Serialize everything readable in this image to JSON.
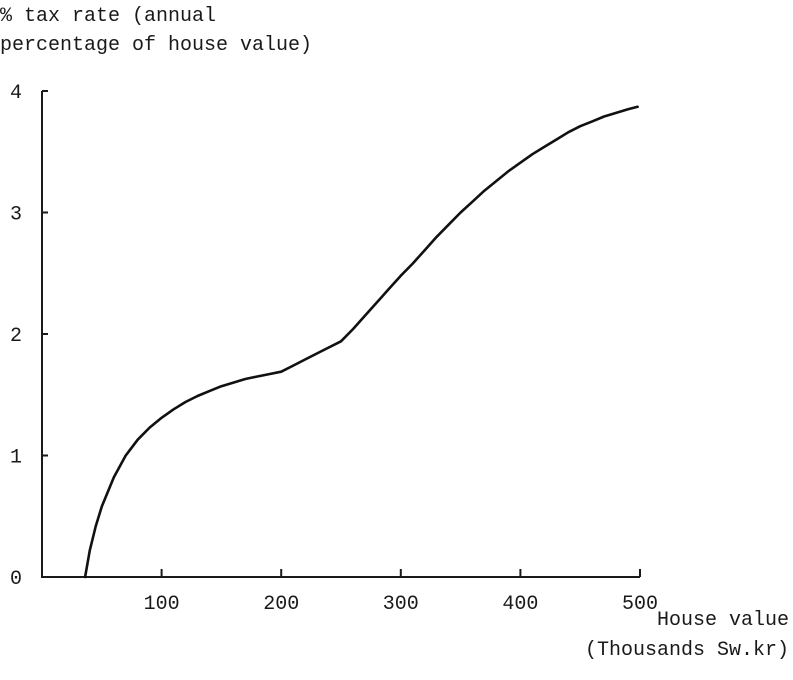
{
  "chart_data": {
    "type": "line",
    "ylabel_lines": [
      "% tax rate (annual",
      "percentage of house value)"
    ],
    "xlabel_lines": [
      "House value",
      "(Thousands Sw.kr)"
    ],
    "xlim": [
      0,
      500
    ],
    "ylim": [
      0,
      4
    ],
    "x_ticks": [
      100,
      200,
      300,
      400,
      500
    ],
    "y_ticks": [
      0,
      1,
      2,
      3,
      4
    ],
    "grid": false,
    "series": [
      {
        "x": [
          36,
          40,
          45,
          50,
          60,
          70,
          80,
          90,
          100,
          110,
          120,
          130,
          140,
          150,
          160,
          170,
          180,
          190,
          200,
          210,
          220,
          230,
          240,
          250,
          260,
          270,
          280,
          290,
          300,
          310,
          320,
          330,
          340,
          350,
          360,
          370,
          380,
          390,
          400,
          410,
          420,
          430,
          440,
          450,
          460,
          470,
          480,
          490,
          498
        ],
        "y": [
          0.0,
          0.22,
          0.42,
          0.58,
          0.82,
          1.0,
          1.13,
          1.23,
          1.31,
          1.38,
          1.44,
          1.49,
          1.53,
          1.57,
          1.6,
          1.63,
          1.65,
          1.67,
          1.69,
          1.74,
          1.79,
          1.84,
          1.89,
          1.94,
          2.04,
          2.15,
          2.26,
          2.37,
          2.48,
          2.58,
          2.69,
          2.8,
          2.9,
          3.0,
          3.09,
          3.18,
          3.26,
          3.34,
          3.41,
          3.48,
          3.54,
          3.6,
          3.66,
          3.71,
          3.75,
          3.79,
          3.82,
          3.85,
          3.87
        ]
      }
    ]
  }
}
